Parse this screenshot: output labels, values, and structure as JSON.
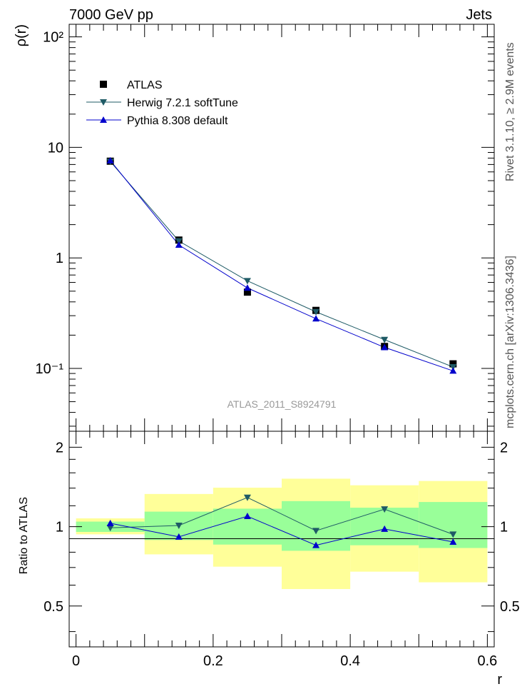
{
  "header": {
    "left": "7000 GeV pp",
    "right": "Jets"
  },
  "side_labels": {
    "rivet": "Rivet 3.1.10, ≥ 2.9M events",
    "mcplots": "mcplots.cern.ch [arXiv:1306.3436]"
  },
  "watermark": "ATLAS_2011_S8924791",
  "chart_data": [
    {
      "type": "scatter",
      "panel": "main",
      "ylabel": "ρ(r)",
      "yscale": "log",
      "ylim": [
        0.027,
        130
      ],
      "xlim": [
        -0.01,
        0.61
      ],
      "ytick_labels": [
        "10⁻¹",
        "1",
        "10",
        "10²"
      ],
      "legend": {
        "placement": "top-left"
      },
      "series": [
        {
          "name": "ATLAS",
          "marker": "square",
          "color": "#000000",
          "x": [
            0.05,
            0.15,
            0.25,
            0.35,
            0.45,
            0.55
          ],
          "y": [
            7.5,
            1.45,
            0.49,
            0.335,
            0.158,
            0.11
          ]
        },
        {
          "name": "Herwig 7.2.1 softTune",
          "marker": "triangle-down",
          "color": "#1f5b66",
          "x": [
            0.05,
            0.15,
            0.25,
            0.35,
            0.45,
            0.55
          ],
          "y": [
            7.45,
            1.42,
            0.62,
            0.325,
            0.182,
            0.103
          ]
        },
        {
          "name": "Pythia 8.308 default",
          "marker": "triangle-up",
          "color": "#0000cc",
          "x": [
            0.05,
            0.15,
            0.25,
            0.35,
            0.45,
            0.55
          ],
          "y": [
            7.6,
            1.31,
            0.535,
            0.282,
            0.155,
            0.095
          ]
        }
      ]
    },
    {
      "type": "line",
      "panel": "ratio",
      "ylabel": "Ratio to ATLAS",
      "xlabel": "r",
      "ylim": [
        0.35,
        2.3
      ],
      "xlim": [
        -0.01,
        0.61
      ],
      "xtick_labels": [
        "0",
        "0.2",
        "0.4",
        "0.6"
      ],
      "ytick_labels": [
        "0.5",
        "1",
        "2"
      ],
      "bands": {
        "edges": [
          0.0,
          0.1,
          0.2,
          0.3,
          0.4,
          0.5,
          0.6
        ],
        "inner": [
          [
            0.955,
            1.045
          ],
          [
            0.89,
            1.14
          ],
          [
            0.855,
            1.17
          ],
          [
            0.81,
            1.25
          ],
          [
            0.85,
            1.18
          ],
          [
            0.83,
            1.24
          ]
        ],
        "outer": [
          [
            0.935,
            1.075
          ],
          [
            0.785,
            1.33
          ],
          [
            0.705,
            1.405
          ],
          [
            0.58,
            1.52
          ],
          [
            0.675,
            1.435
          ],
          [
            0.615,
            1.49
          ]
        ],
        "inner_color": "#99ff99",
        "outer_color": "#ffff99"
      },
      "series": [
        {
          "name": "Herwig 7.2.1 softTune",
          "color": "#1f5b66",
          "marker": "triangle-down",
          "x": [
            0.05,
            0.15,
            0.25,
            0.35,
            0.45,
            0.55
          ],
          "y": [
            0.99,
            1.01,
            1.29,
            0.965,
            1.165,
            0.935
          ],
          "err": [
            0.01,
            0.01,
            0.02,
            0.01,
            0.015,
            0.012
          ]
        },
        {
          "name": "Pythia 8.308 default",
          "color": "#0000cc",
          "marker": "triangle-up",
          "x": [
            0.05,
            0.15,
            0.25,
            0.35,
            0.45,
            0.55
          ],
          "y": [
            1.03,
            0.915,
            1.095,
            0.85,
            0.98,
            0.875
          ],
          "err": [
            0.012,
            0.01,
            0.025,
            0.012,
            0.015,
            0.012
          ]
        }
      ]
    }
  ]
}
